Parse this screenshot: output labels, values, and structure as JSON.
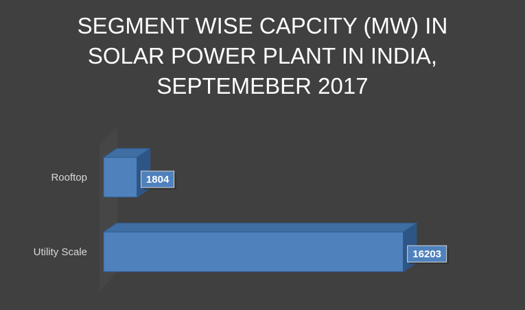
{
  "chart_data": {
    "type": "bar",
    "orientation": "horizontal",
    "style": "3d",
    "title_lines": [
      "SEGMENT WISE CAPCITY (MW) IN",
      "SOLAR POWER PLANT IN INDIA,",
      "SEPTEMEBER 2017"
    ],
    "categories": [
      "Rooftop",
      "Utility Scale"
    ],
    "values": [
      1804,
      16203
    ],
    "data_labels": [
      "1804",
      "16203"
    ],
    "xlabel": "",
    "ylabel": "",
    "grid": false,
    "legend": "none",
    "colors": {
      "background": "#404040",
      "bar_front": "#4f81bd",
      "bar_top": "#3f6ea3",
      "bar_side": "#2d5687",
      "bar_edge": "#2c5a8e",
      "title": "#ffffff",
      "category_label": "#d9d9d9",
      "data_label_text": "#ffffff",
      "data_label_border": "#d9d9d9",
      "back_wall": "#4a4a4a"
    }
  }
}
